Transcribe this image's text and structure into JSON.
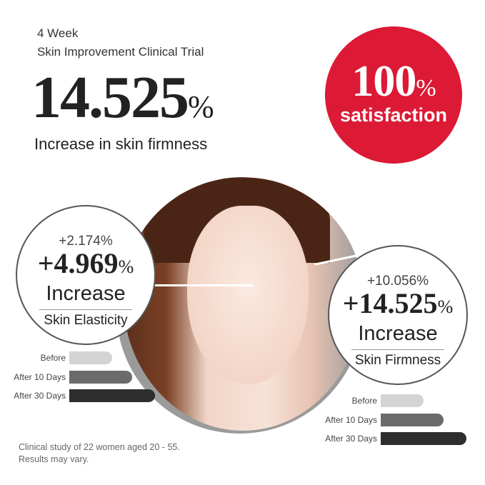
{
  "header": {
    "duration": "4 Week",
    "trial": "Skin Improvement Clinical Trial",
    "headline_value": "14.525",
    "headline_unit": "%",
    "headline_desc": "Increase in skin firmness"
  },
  "badge": {
    "value": "100",
    "unit": "%",
    "label": "satisfaction",
    "color": "#dc1a35"
  },
  "elasticity": {
    "small": "+2.174%",
    "big": "+4.969",
    "unit": "%",
    "increase": "Increase",
    "metric": "Skin Elasticity",
    "bars": [
      {
        "label": "Before",
        "fill": 0.5,
        "color": "#d4d4d4"
      },
      {
        "label": "After 10 Days",
        "fill": 0.73,
        "color": "#6b6b6b"
      },
      {
        "label": "After 30 Days",
        "fill": 1.0,
        "color": "#2e2e2e"
      }
    ]
  },
  "firmness": {
    "small": "+10.056%",
    "big": "+14.525",
    "unit": "%",
    "increase": "Increase",
    "metric": "Skin Firmness",
    "bars": [
      {
        "label": "Before",
        "fill": 0.5,
        "color": "#d4d4d4"
      },
      {
        "label": "After 10 Days",
        "fill": 0.73,
        "color": "#6b6b6b"
      },
      {
        "label": "After 30 Days",
        "fill": 1.0,
        "color": "#2e2e2e"
      }
    ]
  },
  "footnote": {
    "line1": "Clinical study of 22 women aged 20 - 55.",
    "line2": "Results may vary."
  }
}
